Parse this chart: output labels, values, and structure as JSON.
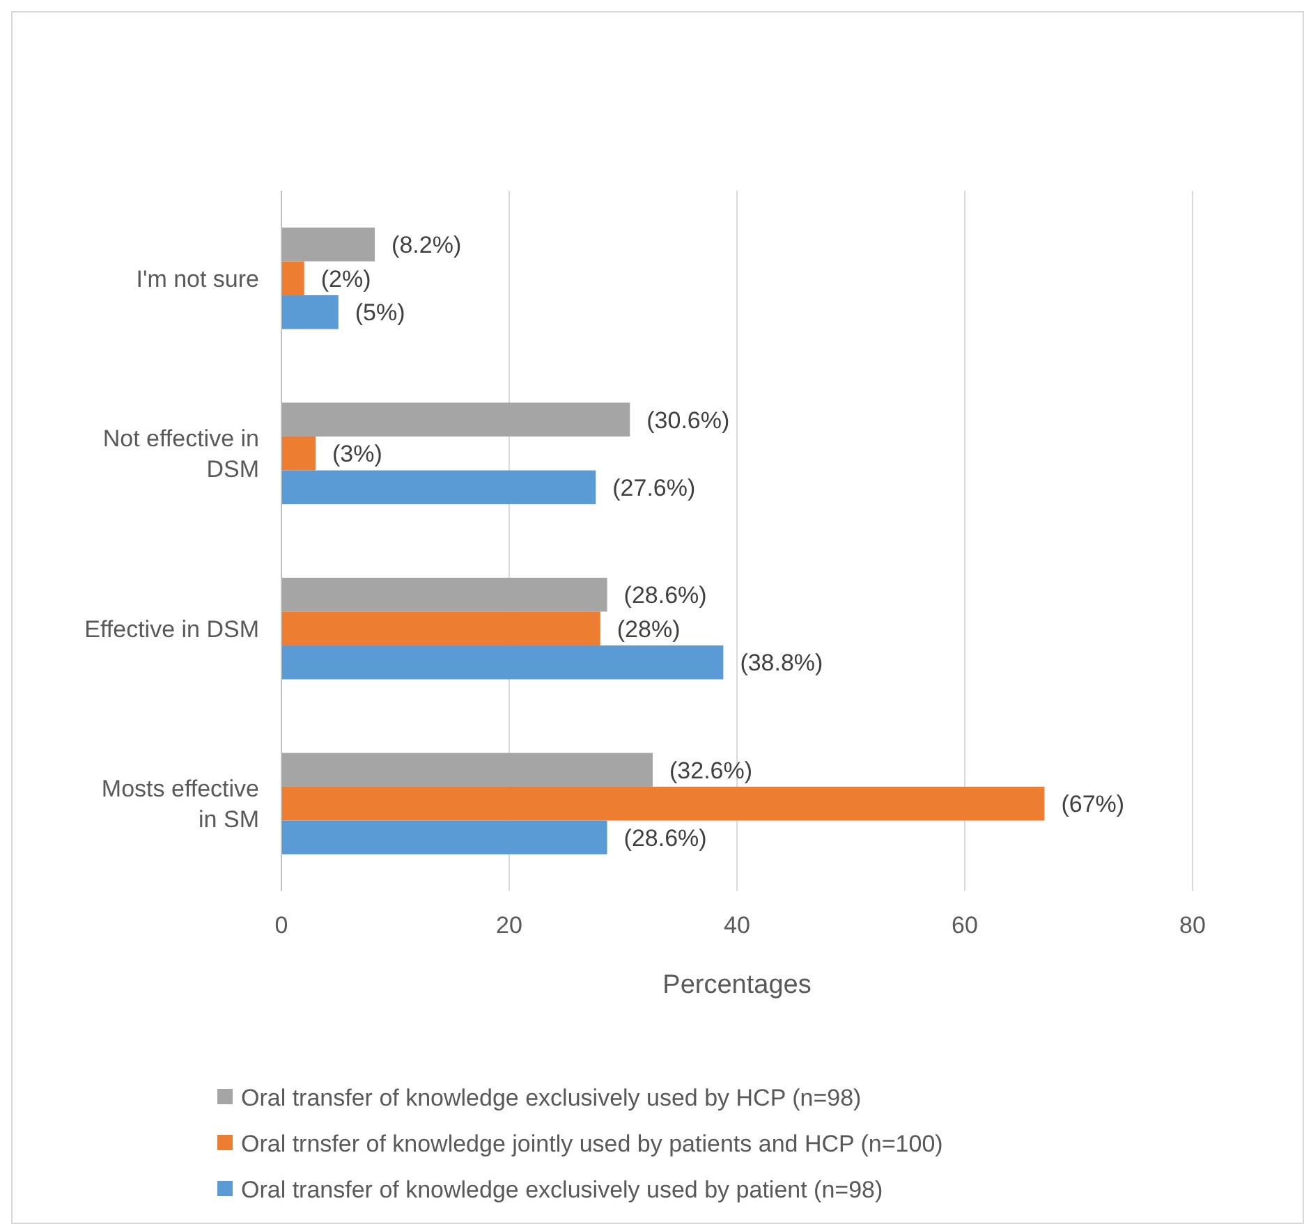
{
  "chart_data": {
    "type": "bar",
    "orientation": "horizontal",
    "xlabel": "Percentages",
    "categories": [
      "I'm not sure",
      "Not effective in DSM",
      "Effective in DSM",
      "Mosts effective in SM"
    ],
    "series": [
      {
        "name": "Oral transfer of knowledge exclusively used by HCP (n=98)",
        "color": "#a5a5a5",
        "values": [
          8.2,
          30.6,
          28.6,
          32.6
        ],
        "value_labels": [
          "(8.2%)",
          "(30.6%)",
          "(28.6%)",
          "(32.6%)"
        ]
      },
      {
        "name": "Oral trnsfer of knowledge jointly used by patients and HCP (n=100)",
        "color": "#ed7d31",
        "values": [
          2,
          3,
          28,
          67
        ],
        "value_labels": [
          "(2%)",
          "(3%)",
          "(28%)",
          "(67%)"
        ]
      },
      {
        "name": "Oral transfer of knowledge exclusively used by patient (n=98)",
        "color": "#5b9bd5",
        "values": [
          5,
          27.6,
          38.8,
          28.6
        ],
        "value_labels": [
          "(5%)",
          "(27.6%)",
          "(38.8%)",
          "(28.6%)"
        ]
      }
    ],
    "xlim": [
      0,
      80
    ],
    "xticks": [
      0,
      20,
      40,
      60,
      80
    ],
    "grid": "x",
    "legend": "bottom"
  }
}
